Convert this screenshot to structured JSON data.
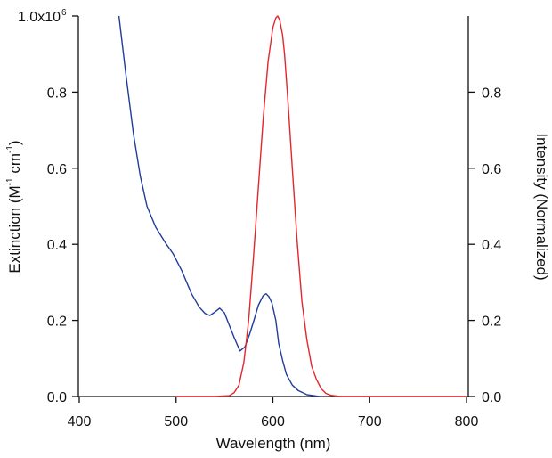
{
  "chart_data": {
    "type": "line",
    "title": "",
    "xlabel": "Wavelength (nm)",
    "ylabel_left": {
      "main": "Extinction (M",
      "sup1": "-1",
      "mid": " cm",
      "sup2": "-1",
      "end": ")"
    },
    "ylabel_right": "Intensity (Normalized)",
    "xlim": [
      400,
      800
    ],
    "ylim_left": [
      0,
      1.0
    ],
    "ylim_right": [
      0,
      1.0
    ],
    "x_ticks": [
      400,
      500,
      600,
      700,
      800
    ],
    "x_tick_labels": [
      "400",
      "500",
      "600",
      "700",
      "800"
    ],
    "y_left_ticks": [
      0,
      0.2,
      0.4,
      0.6,
      0.8,
      1.0
    ],
    "y_left_tick_labels": [
      "0.0",
      "0.2",
      "0.4",
      "0.6",
      "0.8",
      "1.0x10"
    ],
    "y_left_top_exponent": "6",
    "y_right_ticks": [
      0,
      0.2,
      0.4,
      0.6,
      0.8
    ],
    "y_right_tick_labels": [
      "0.0",
      "0.2",
      "0.4",
      "0.6",
      "0.8"
    ],
    "grid": false,
    "series": [
      {
        "name": "Extinction",
        "axis": "left",
        "color": "#1f3d99",
        "x": [
          441,
          448,
          456,
          463,
          470,
          479,
          490,
          497,
          506,
          516,
          524,
          530,
          535,
          540,
          545,
          550,
          553,
          560,
          566,
          571,
          576,
          581,
          585,
          590,
          593,
          596,
          599,
          603,
          606,
          610,
          614,
          620,
          626,
          635,
          648
        ],
        "y": [
          1.0,
          0.85,
          0.69,
          0.58,
          0.5,
          0.445,
          0.4,
          0.375,
          0.33,
          0.27,
          0.235,
          0.218,
          0.213,
          0.222,
          0.232,
          0.22,
          0.2,
          0.155,
          0.12,
          0.13,
          0.164,
          0.205,
          0.24,
          0.265,
          0.27,
          0.262,
          0.246,
          0.2,
          0.14,
          0.095,
          0.058,
          0.03,
          0.016,
          0.005,
          0.0
        ]
      },
      {
        "name": "Intensity",
        "axis": "right",
        "color": "#e3262b",
        "x": [
          500,
          540,
          555,
          560,
          565,
          570,
          575,
          580,
          585,
          590,
          595,
          600,
          603,
          605,
          607,
          610,
          612,
          616,
          620,
          625,
          630,
          635,
          640,
          645,
          650,
          655,
          660,
          670,
          700,
          800
        ],
        "y": [
          0,
          0,
          0.002,
          0.01,
          0.03,
          0.09,
          0.2,
          0.37,
          0.55,
          0.73,
          0.88,
          0.97,
          0.995,
          1.0,
          0.99,
          0.95,
          0.9,
          0.76,
          0.6,
          0.41,
          0.25,
          0.15,
          0.08,
          0.045,
          0.02,
          0.008,
          0.003,
          0,
          0,
          0
        ]
      }
    ]
  }
}
